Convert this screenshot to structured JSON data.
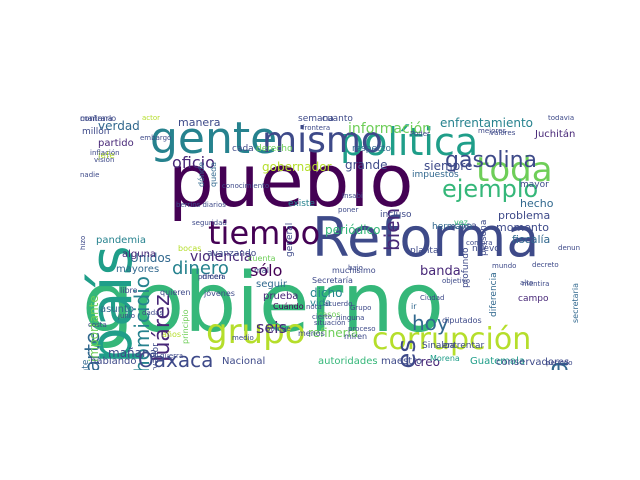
{
  "figure": {
    "background": "#ffffff",
    "palette": [
      "#440154",
      "#482878",
      "#3e4a89",
      "#31688e",
      "#26828e",
      "#1f9e89",
      "#35b779",
      "#6ece58",
      "#b5de2b",
      "#fde725"
    ]
  },
  "words": [
    {
      "text": "gobierno",
      "color": "#35b779"
    },
    {
      "text": "pueblo",
      "color": "#440154"
    },
    {
      "text": "Reforma",
      "color": "#3e4a89"
    },
    {
      "text": "país",
      "color": "#1f9e89"
    },
    {
      "text": "gente",
      "color": "#26828e"
    },
    {
      "text": "política",
      "color": "#1f9e89"
    },
    {
      "text": "mismo",
      "color": "#3e4a89"
    },
    {
      "text": "corrupción",
      "color": "#b5de2b"
    },
    {
      "text": "toda",
      "color": "#6ece58"
    },
    {
      "text": "grupo",
      "color": "#b5de2b"
    },
    {
      "text": "tiempo",
      "color": "#440154"
    },
    {
      "text": "ejemplo",
      "color": "#35b779"
    },
    {
      "text": "programa",
      "color": "#31688e"
    },
    {
      "text": "gasolina",
      "color": "#3e4a89"
    },
    {
      "text": "millones",
      "color": "#3e4a89"
    },
    {
      "text": "Juárez",
      "color": "#482878"
    },
    {
      "text": "homicidio",
      "color": "#26828e"
    },
    {
      "text": "hoy",
      "color": "#31688e"
    },
    {
      "text": "parte",
      "color": "#31688e"
    },
    {
      "text": "bien",
      "color": "#482878"
    },
    {
      "text": "dinero",
      "color": "#26828e"
    },
    {
      "text": "Oaxaca",
      "color": "#3e4a89"
    },
    {
      "text": "información",
      "color": "#6ece58"
    },
    {
      "text": "oficio",
      "color": "#482878"
    },
    {
      "text": "verdad",
      "color": "#31688e"
    },
    {
      "text": "seis",
      "color": "#482878"
    },
    {
      "text": "sólo",
      "color": "#440154"
    },
    {
      "text": "enfrentamiento",
      "color": "#26828e"
    },
    {
      "text": "violencia",
      "color": "#482878"
    },
    {
      "text": "mañana",
      "color": "#3e4a89"
    },
    {
      "text": "periódico",
      "color": "#35b779"
    },
    {
      "text": "grande",
      "color": "#3e4a89"
    },
    {
      "text": "banda",
      "color": "#482878"
    },
    {
      "text": "siempre",
      "color": "#3e4a89"
    },
    {
      "text": "dicho",
      "color": "#26828e"
    },
    {
      "text": "Unidos",
      "color": "#31688e"
    },
    {
      "text": "gobernador",
      "color": "#b5de2b"
    },
    {
      "text": "refinería",
      "color": "#6ece58"
    },
    {
      "text": "creo",
      "color": "#482878"
    },
    {
      "text": "manera",
      "color": "#3e4a89"
    },
    {
      "text": "importante",
      "color": "#6ece58"
    },
    {
      "text": "hecho",
      "color": "#31688e"
    },
    {
      "text": "fiscalía",
      "color": "#31688e"
    },
    {
      "text": "momento",
      "color": "#3e4a89"
    },
    {
      "text": "problema",
      "color": "#3e4a89"
    },
    {
      "text": "mayores",
      "color": "#31688e"
    },
    {
      "text": "partido",
      "color": "#482878"
    },
    {
      "text": "pandemia",
      "color": "#26828e"
    },
    {
      "text": "asunto",
      "color": "#31688e"
    },
    {
      "text": "alguna",
      "color": "#482878"
    },
    {
      "text": "vida",
      "color": "#26828e"
    },
    {
      "text": "prueba",
      "color": "#482878"
    },
    {
      "text": "seguir",
      "color": "#31688e"
    },
    {
      "text": "maestro",
      "color": "#3e4a89"
    },
    {
      "text": "cosa",
      "color": "#3e4a89"
    },
    {
      "text": "Guatemala",
      "color": "#1f9e89"
    },
    {
      "text": "conservadores",
      "color": "#3e4a89"
    },
    {
      "text": "Nacional",
      "color": "#3e4a89"
    },
    {
      "text": "autoridades",
      "color": "#35b779"
    },
    {
      "text": "hablando",
      "color": "#3e4a89"
    },
    {
      "text": "dirigente",
      "color": "#31688e"
    },
    {
      "text": "conservador",
      "color": "#3e4a89"
    },
    {
      "text": "avanzando",
      "color": "#3e4a89"
    },
    {
      "text": "entrentar",
      "color": "#3e4a89"
    },
    {
      "text": "Sinaloa",
      "color": "#3e4a89"
    },
    {
      "text": "campo",
      "color": "#482878"
    },
    {
      "text": "mayor",
      "color": "#3e4a89"
    },
    {
      "text": "jefe",
      "color": "#b5de2b"
    },
    {
      "text": "millón",
      "color": "#3e4a89"
    },
    {
      "text": "Juchitán",
      "color": "#482878"
    },
    {
      "text": "semana",
      "color": "#3e4a89"
    },
    {
      "text": "cuánto",
      "color": "#3e4a89"
    },
    {
      "text": "cada",
      "color": "#3e4a89"
    },
    {
      "text": "derecho",
      "color": "#6ece58"
    },
    {
      "text": "respecto",
      "color": "#31688e"
    },
    {
      "text": "incluso",
      "color": "#3e4a89"
    },
    {
      "text": "nuevo",
      "color": "#3e4a89"
    },
    {
      "text": "hermano",
      "color": "#31688e"
    },
    {
      "text": "existe",
      "color": "#26828e"
    },
    {
      "text": "general",
      "color": "#3e4a89"
    },
    {
      "text": "impuestos",
      "color": "#31688e"
    },
    {
      "text": "planta",
      "color": "#3e4a89"
    },
    {
      "text": "persona",
      "color": "#3e4a89"
    },
    {
      "text": "profundo",
      "color": "#3e4a89"
    },
    {
      "text": "diferencia",
      "color": "#31688e"
    },
    {
      "text": "secretaria",
      "color": "#31688e"
    },
    {
      "text": "Morena",
      "color": "#1f9e89"
    },
    {
      "text": "principio",
      "color": "#6ece58"
    },
    {
      "text": "Cuándo",
      "color": "#440154"
    },
    {
      "text": "casos",
      "color": "#6ece58"
    },
    {
      "text": "años",
      "color": "#b5de2b"
    },
    {
      "text": "miren",
      "color": "#3e4a89"
    },
    {
      "text": "menos",
      "color": "#3e4a89"
    },
    {
      "text": "cuenta",
      "color": "#6ece58"
    },
    {
      "text": "bocas",
      "color": "#b5de2b"
    },
    {
      "text": "dónde",
      "color": "#31688e"
    },
    {
      "text": "queda",
      "color": "#31688e"
    },
    {
      "text": "vez",
      "color": "#35b779"
    },
    {
      "text": "ir",
      "color": "#31688e"
    },
    {
      "text": "mal",
      "color": "#3e4a89"
    },
    {
      "text": "diputados",
      "color": "#3e4a89"
    },
    {
      "text": "libro",
      "color": "#3e4a89"
    },
    {
      "text": "jóvenes",
      "color": "#3e4a89"
    },
    {
      "text": "quieren",
      "color": "#3e4a89"
    },
    {
      "text": "dicen",
      "color": "#3e4a89"
    },
    {
      "text": "Secretaría",
      "color": "#3e4a89"
    },
    {
      "text": "muchísimo",
      "color": "#3e4a89"
    },
    {
      "text": "actor",
      "color": "#b5de2b"
    },
    {
      "text": "todavía",
      "color": "#3e4a89"
    },
    {
      "text": "Insabi",
      "color": "#3e4a89"
    },
    {
      "text": "poner",
      "color": "#3e4a89"
    },
    {
      "text": "junio",
      "color": "#3e4a89"
    },
    {
      "text": "visión",
      "color": "#3e4a89"
    },
    {
      "text": "nadie",
      "color": "#3e4a89"
    },
    {
      "text": "compra",
      "color": "#3e4a89"
    },
    {
      "text": "denuncia",
      "color": "#3e4a89"
    },
    {
      "text": "mentira",
      "color": "#3e4a89"
    },
    {
      "text": "mundo",
      "color": "#3e4a89"
    },
    {
      "text": "decreto",
      "color": "#3e4a89"
    },
    {
      "text": "periodo",
      "color": "#3e4a89"
    },
    {
      "text": "hizo",
      "color": "#3e4a89"
    },
    {
      "text": "seguridad",
      "color": "#3e4a89"
    },
    {
      "text": "berrios diarios",
      "color": "#3e4a89"
    },
    {
      "text": "primera",
      "color": "#3e4a89"
    },
    {
      "text": "costa",
      "color": "#3e4a89"
    },
    {
      "text": "acuerdo",
      "color": "#3e4a89"
    },
    {
      "text": "cierto",
      "color": "#3e4a89"
    },
    {
      "text": "medio",
      "color": "#3e4a89"
    },
    {
      "text": "valores",
      "color": "#3e4a89"
    },
    {
      "text": "mejores",
      "color": "#3e4a89"
    },
    {
      "text": "Poder",
      "color": "#3e4a89"
    },
    {
      "text": "frontera",
      "color": "#3e4a89"
    },
    {
      "text": "conocimiento",
      "color": "#3e4a89"
    },
    {
      "text": "inflación",
      "color": "#3e4a89"
    },
    {
      "text": "embargo",
      "color": "#3e4a89"
    },
    {
      "text": "dadas",
      "color": "#3e4a89"
    },
    {
      "text": "bajo",
      "color": "#3e4a89"
    },
    {
      "text": "alto",
      "color": "#3e4a89"
    },
    {
      "text": "objetivo",
      "color": "#3e4a89"
    },
    {
      "text": "nota",
      "color": "#3e4a89"
    },
    {
      "text": "porque",
      "color": "#3e4a89"
    },
    {
      "text": "proceso",
      "color": "#3e4a89"
    },
    {
      "text": "situación",
      "color": "#3e4a89"
    },
    {
      "text": "Ciudad",
      "color": "#3e4a89"
    },
    {
      "text": "ninguna",
      "color": "#3e4a89"
    },
    {
      "text": "guerra",
      "color": "#3e4a89"
    },
    {
      "text": "Grupo",
      "color": "#3e4a89"
    },
    {
      "text": "mañana",
      "color": "#3e4a89"
    },
    {
      "text": "contrario",
      "color": "#3e4a89"
    }
  ]
}
